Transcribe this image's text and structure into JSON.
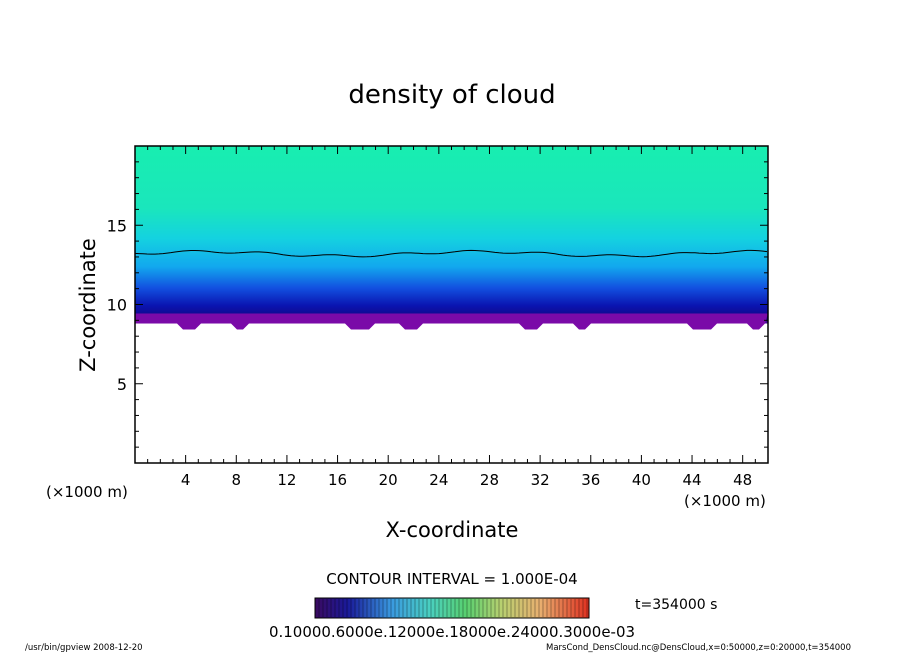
{
  "chart_data": {
    "type": "heatmap",
    "title": "density of cloud",
    "xlabel": "X-coordinate",
    "ylabel": "Z-coordinate",
    "xunit_left": "(×1000 m)",
    "xunit_right": "(×1000 m)",
    "xlim": [
      0,
      50
    ],
    "ylim": [
      0,
      20
    ],
    "xticks": [
      4,
      8,
      12,
      16,
      20,
      24,
      28,
      32,
      36,
      40,
      44,
      48
    ],
    "yticks": [
      5,
      10,
      15
    ],
    "cloud_base_z": 8.8,
    "contour_z": 13.2,
    "contour_interval_label": "CONTOUR INTERVAL = 1.000E-04",
    "time_label": "t=354000 s",
    "colorbar_labels": "0.10000.6000e.12000e.18000e.24000.3000e-03",
    "colors": {
      "top": "#19ecb0",
      "mid": "#14c8e8",
      "lower": "#1250e0",
      "deep": "#0a0c98",
      "base": "#7a0aa8"
    }
  },
  "footer": {
    "left": "/usr/bin/gpview   2008-12-20",
    "right": "MarsCond_DensCloud.nc@DensCloud,x=0:50000,z=0:20000,t=354000"
  }
}
